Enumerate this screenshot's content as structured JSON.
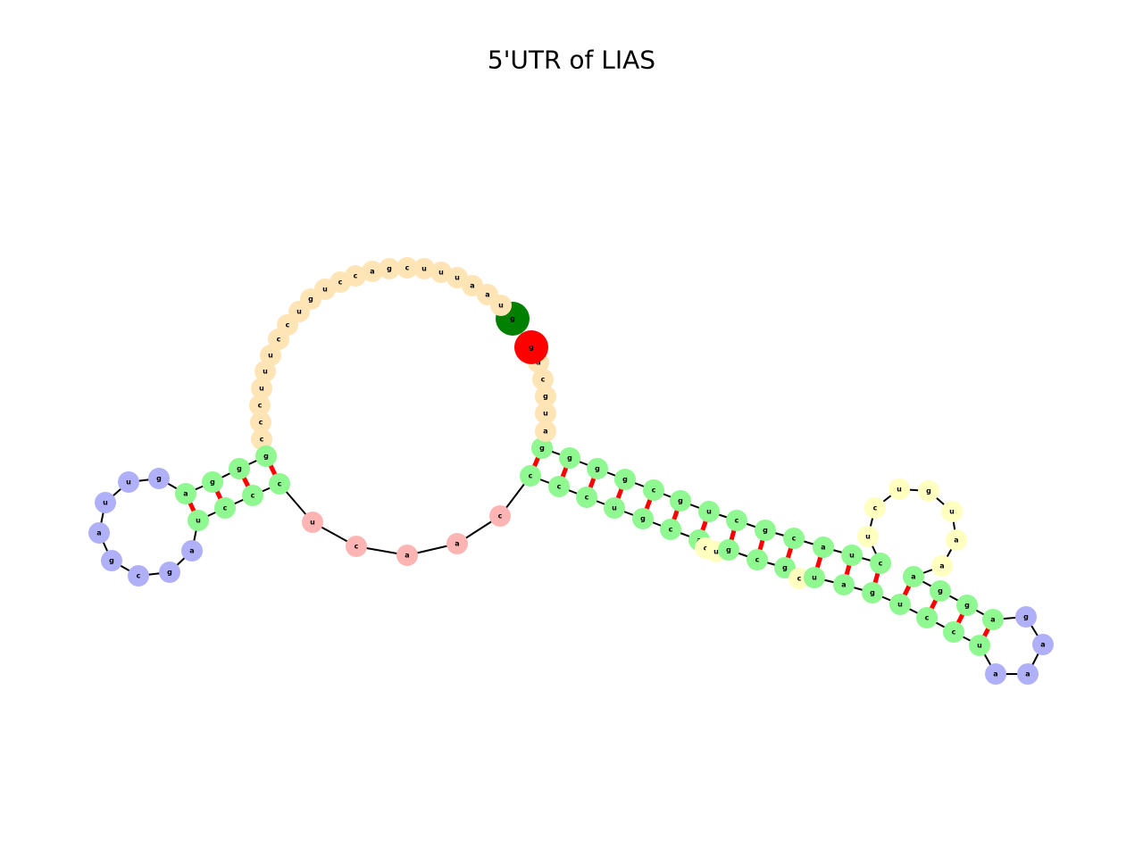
{
  "title": "5'UTR of LIAS",
  "nodes": [
    {
      "label": "g"
    },
    {
      "label": "u"
    },
    {
      "label": "a"
    },
    {
      "label": "a"
    },
    {
      "label": "u"
    },
    {
      "label": "u"
    },
    {
      "label": "u"
    },
    {
      "label": "c"
    },
    {
      "label": "g"
    },
    {
      "label": "a"
    },
    {
      "label": "c"
    },
    {
      "label": "c"
    },
    {
      "label": "u"
    },
    {
      "label": "g"
    },
    {
      "label": "u"
    },
    {
      "label": "c"
    },
    {
      "label": "c"
    },
    {
      "label": "u"
    },
    {
      "label": "u"
    },
    {
      "label": "u"
    },
    {
      "label": "c"
    },
    {
      "label": "c"
    },
    {
      "label": "c"
    },
    {
      "label": "g"
    },
    {
      "label": "g"
    },
    {
      "label": "g"
    },
    {
      "label": "a"
    },
    {
      "label": "g"
    },
    {
      "label": "u"
    },
    {
      "label": "u"
    },
    {
      "label": "a"
    },
    {
      "label": "g"
    },
    {
      "label": "c"
    },
    {
      "label": "g"
    },
    {
      "label": "a"
    },
    {
      "label": "u"
    },
    {
      "label": "c"
    },
    {
      "label": "c"
    },
    {
      "label": "c"
    },
    {
      "label": "u"
    },
    {
      "label": "c"
    },
    {
      "label": "a"
    },
    {
      "label": "a"
    },
    {
      "label": "c"
    },
    {
      "label": "c"
    },
    {
      "label": "c"
    },
    {
      "label": "c"
    },
    {
      "label": "u"
    },
    {
      "label": "g"
    },
    {
      "label": "c"
    },
    {
      "label": "a"
    },
    {
      "label": "c"
    },
    {
      "label": "u"
    },
    {
      "label": "g"
    },
    {
      "label": "c"
    },
    {
      "label": "g"
    },
    {
      "label": "c"
    },
    {
      "label": "u"
    },
    {
      "label": "a"
    },
    {
      "label": "g"
    },
    {
      "label": "u"
    },
    {
      "label": "c"
    },
    {
      "label": "c"
    },
    {
      "label": "u"
    },
    {
      "label": "a"
    },
    {
      "label": "a"
    },
    {
      "label": "a"
    },
    {
      "label": "g"
    },
    {
      "label": "a"
    },
    {
      "label": "g"
    },
    {
      "label": "g"
    },
    {
      "label": "a"
    },
    {
      "label": "a"
    },
    {
      "label": "a"
    },
    {
      "label": "u"
    },
    {
      "label": "g"
    },
    {
      "label": "u"
    },
    {
      "label": "c"
    },
    {
      "label": "u"
    },
    {
      "label": "c"
    },
    {
      "label": "u"
    },
    {
      "label": "a"
    },
    {
      "label": "c"
    },
    {
      "label": "g"
    },
    {
      "label": "c"
    },
    {
      "label": "u"
    },
    {
      "label": "g"
    },
    {
      "label": "c"
    },
    {
      "label": "g"
    },
    {
      "label": "g"
    },
    {
      "label": "g"
    },
    {
      "label": "g"
    },
    {
      "label": "a"
    },
    {
      "label": "u"
    },
    {
      "label": "g"
    },
    {
      "label": "c"
    },
    {
      "label": "a"
    },
    {
      "label": "g"
    }
  ]
}
